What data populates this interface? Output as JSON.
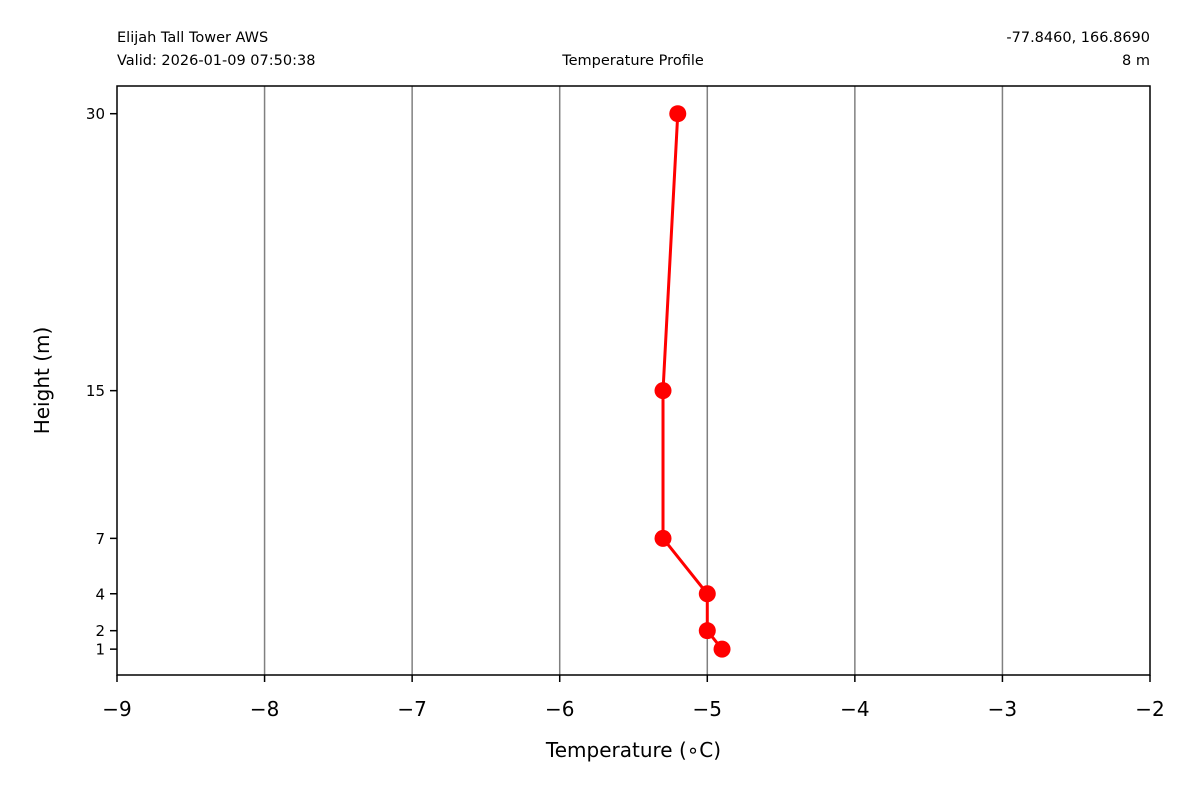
{
  "header": {
    "station_name": "Elijah Tall Tower AWS",
    "valid_time": "Valid: 2026-01-09 07:50:38",
    "coordinates": "-77.8460, 166.8690",
    "elevation": "8 m"
  },
  "chart_data": {
    "type": "line",
    "title": "Temperature Profile",
    "xlabel": "Temperature (∘C)",
    "ylabel": "Height (m)",
    "xlim": [
      -9,
      -2
    ],
    "ylim": [
      -0.4,
      31.5
    ],
    "xticks": [
      -9,
      -8,
      -7,
      -6,
      -5,
      -4,
      -3,
      -2
    ],
    "xtick_labels": [
      "−9",
      "−8",
      "−7",
      "−6",
      "−5",
      "−4",
      "−3",
      "−2"
    ],
    "yticks": [
      1,
      2,
      4,
      7,
      15,
      30
    ],
    "ytick_labels": [
      "1",
      "2",
      "4",
      "7",
      "15",
      "30"
    ],
    "grid": "vertical",
    "series": [
      {
        "color": "#ff0000",
        "marker": "circle",
        "points": [
          {
            "x": -4.9,
            "y": 1
          },
          {
            "x": -5.0,
            "y": 2
          },
          {
            "x": -5.0,
            "y": 4
          },
          {
            "x": -5.3,
            "y": 7
          },
          {
            "x": -5.3,
            "y": 15
          },
          {
            "x": -5.2,
            "y": 30
          }
        ]
      }
    ],
    "colors": {
      "grid": "#808080",
      "axes": "#000000",
      "series": "#ff0000"
    }
  }
}
